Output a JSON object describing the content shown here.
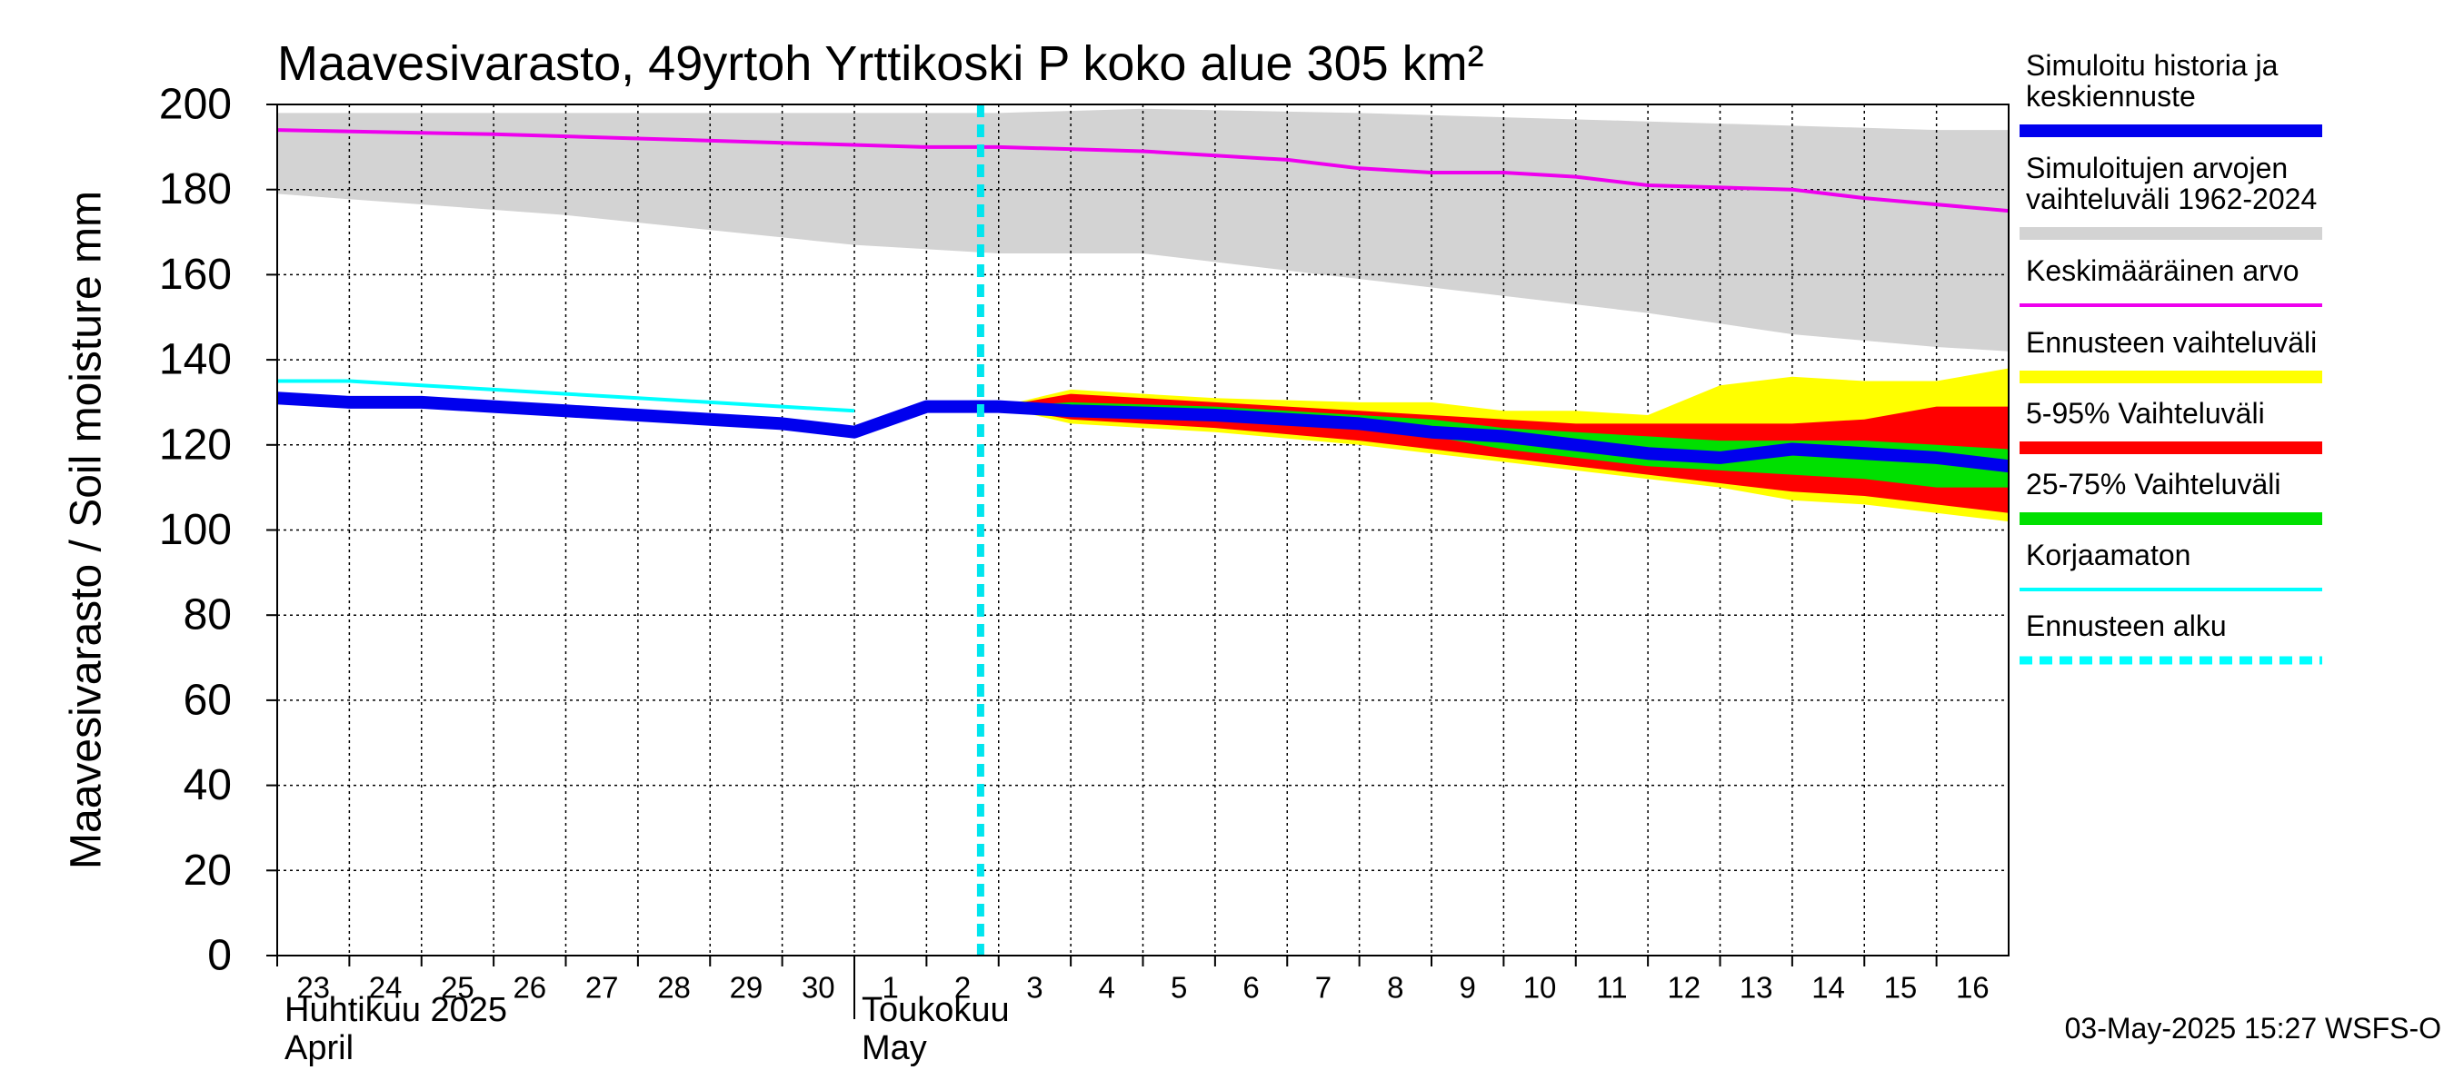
{
  "chart_data": {
    "type": "area",
    "title": "Maavesivarasto, 49yrtoh Yrttikoski P koko alue 305 km²",
    "ylabel": "Maavesivarasto / Soil moisture   mm",
    "ylim": [
      0,
      200
    ],
    "yticks": [
      "0",
      "20",
      "40",
      "60",
      "80",
      "100",
      "120",
      "140",
      "160",
      "180",
      "200"
    ],
    "x_start": "2025-04-23",
    "x_end": "2025-05-17",
    "x_ticks": [
      "23",
      "24",
      "25",
      "26",
      "27",
      "28",
      "29",
      "30",
      "1",
      "2",
      "3",
      "4",
      "5",
      "6",
      "7",
      "8",
      "9",
      "10",
      "11",
      "12",
      "13",
      "14",
      "15",
      "16"
    ],
    "months": [
      {
        "fi": "Huhtikuu  2025",
        "en": "April",
        "start_tick": 0
      },
      {
        "fi": "Toukokuu",
        "en": "May",
        "start_tick": 8
      }
    ],
    "forecast_start": "2025-05-03",
    "grid": true,
    "legend_position": "right",
    "series": [
      {
        "name": "Simuloitujen arvojen vaihteluväli 1962-2024",
        "kind": "band",
        "color": "#d3d3d3",
        "x": [
          "2025-04-23",
          "2025-04-27",
          "2025-05-01",
          "2025-05-03",
          "2025-05-05",
          "2025-05-08",
          "2025-05-10",
          "2025-05-12",
          "2025-05-14",
          "2025-05-16",
          "2025-05-17"
        ],
        "low": [
          179,
          174,
          167,
          165,
          165,
          159,
          155,
          151,
          146,
          143,
          142
        ],
        "high": [
          198,
          198,
          198,
          198,
          199,
          198,
          197,
          196,
          195,
          194,
          194
        ]
      },
      {
        "name": "Ennusteen vaihteluväli",
        "kind": "band",
        "color": "#ffff00",
        "x": [
          "2025-05-03",
          "2025-05-04",
          "2025-05-06",
          "2025-05-08",
          "2025-05-09",
          "2025-05-10",
          "2025-05-11",
          "2025-05-12",
          "2025-05-13",
          "2025-05-14",
          "2025-05-15",
          "2025-05-16",
          "2025-05-17"
        ],
        "low": [
          129,
          125,
          123,
          120,
          118,
          116,
          114,
          112,
          110,
          107,
          106,
          104,
          102
        ],
        "high": [
          129,
          133,
          131,
          130,
          130,
          128,
          128,
          127,
          134,
          136,
          135,
          135,
          138
        ]
      },
      {
        "name": "5-95% Vaihteluväli",
        "kind": "band",
        "color": "#ff0000",
        "x": [
          "2025-05-03",
          "2025-05-04",
          "2025-05-06",
          "2025-05-08",
          "2025-05-09",
          "2025-05-10",
          "2025-05-11",
          "2025-05-12",
          "2025-05-13",
          "2025-05-14",
          "2025-05-15",
          "2025-05-16",
          "2025-05-17"
        ],
        "low": [
          129,
          126,
          124,
          121,
          119,
          117,
          115,
          113,
          111,
          109,
          108,
          106,
          104
        ],
        "high": [
          129,
          132,
          130,
          128,
          127,
          126,
          125,
          125,
          125,
          125,
          126,
          129,
          129
        ]
      },
      {
        "name": "25-75% Vaihteluväli",
        "kind": "band",
        "color": "#00e000",
        "x": [
          "2025-05-03",
          "2025-05-04",
          "2025-05-06",
          "2025-05-08",
          "2025-05-09",
          "2025-05-10",
          "2025-05-11",
          "2025-05-12",
          "2025-05-13",
          "2025-05-14",
          "2025-05-15",
          "2025-05-16",
          "2025-05-17"
        ],
        "low": [
          129,
          128,
          126,
          124,
          122,
          119,
          117,
          115,
          114,
          113,
          112,
          110,
          110
        ],
        "high": [
          129,
          130,
          129,
          127,
          126,
          124,
          123,
          122,
          121,
          121,
          121,
          120,
          119
        ]
      },
      {
        "name": "Keskimääräinen arvo",
        "kind": "line",
        "color": "#ee00ee",
        "width": 4,
        "x": [
          "2025-04-23",
          "2025-04-26",
          "2025-04-28",
          "2025-04-30",
          "2025-05-02",
          "2025-05-03",
          "2025-05-05",
          "2025-05-07",
          "2025-05-08",
          "2025-05-09",
          "2025-05-10",
          "2025-05-11",
          "2025-05-12",
          "2025-05-14",
          "2025-05-15",
          "2025-05-17"
        ],
        "y": [
          194,
          193,
          192,
          191,
          190,
          190,
          189,
          187,
          185,
          184,
          184,
          183,
          181,
          180,
          178,
          175
        ]
      },
      {
        "name": "Korjaamaton",
        "kind": "line",
        "color": "#00ffff",
        "width": 4,
        "x": [
          "2025-04-23",
          "2025-04-24",
          "2025-04-25",
          "2025-04-26",
          "2025-04-27",
          "2025-04-28",
          "2025-04-29",
          "2025-04-30",
          "2025-05-01"
        ],
        "y": [
          135,
          135,
          134,
          133,
          132,
          131,
          130,
          129,
          128
        ]
      },
      {
        "name": "Simuloitu historia ja keskiennuste",
        "kind": "line",
        "color": "#0000ee",
        "width": 14,
        "x": [
          "2025-04-23",
          "2025-04-24",
          "2025-04-25",
          "2025-04-26",
          "2025-04-27",
          "2025-04-28",
          "2025-04-29",
          "2025-04-30",
          "2025-05-01",
          "2025-05-02",
          "2025-05-03",
          "2025-05-04",
          "2025-05-06",
          "2025-05-08",
          "2025-05-09",
          "2025-05-10",
          "2025-05-11",
          "2025-05-12",
          "2025-05-13",
          "2025-05-14",
          "2025-05-15",
          "2025-05-16",
          "2025-05-17"
        ],
        "y": [
          131,
          130,
          130,
          129,
          128,
          127,
          126,
          125,
          123,
          129,
          129,
          128,
          127,
          125,
          123,
          122,
          120,
          118,
          117,
          119,
          118,
          117,
          115
        ]
      }
    ]
  },
  "legend": [
    {
      "text": [
        "Simuloitu historia ja",
        "keskiennuste"
      ],
      "color": "#0000ee",
      "style": "thick"
    },
    {
      "text": [
        "Simuloitujen arvojen",
        "vaihteluväli 1962-2024"
      ],
      "color": "#d3d3d3",
      "style": "thick"
    },
    {
      "text": [
        "Keskimääräinen arvo"
      ],
      "color": "#ee00ee",
      "style": "thin"
    },
    {
      "text": [
        "Ennusteen vaihteluväli"
      ],
      "color": "#ffff00",
      "style": "thick"
    },
    {
      "text": [
        "5-95% Vaihteluväli"
      ],
      "color": "#ff0000",
      "style": "thick"
    },
    {
      "text": [
        "25-75% Vaihteluväli"
      ],
      "color": "#00e000",
      "style": "thick"
    },
    {
      "text": [
        "Korjaamaton"
      ],
      "color": "#00ffff",
      "style": "thin"
    },
    {
      "text": [
        "Ennusteen alku"
      ],
      "color": "#00ffff",
      "style": "dashed"
    }
  ],
  "footer": "03-May-2025 15:27 WSFS-O"
}
